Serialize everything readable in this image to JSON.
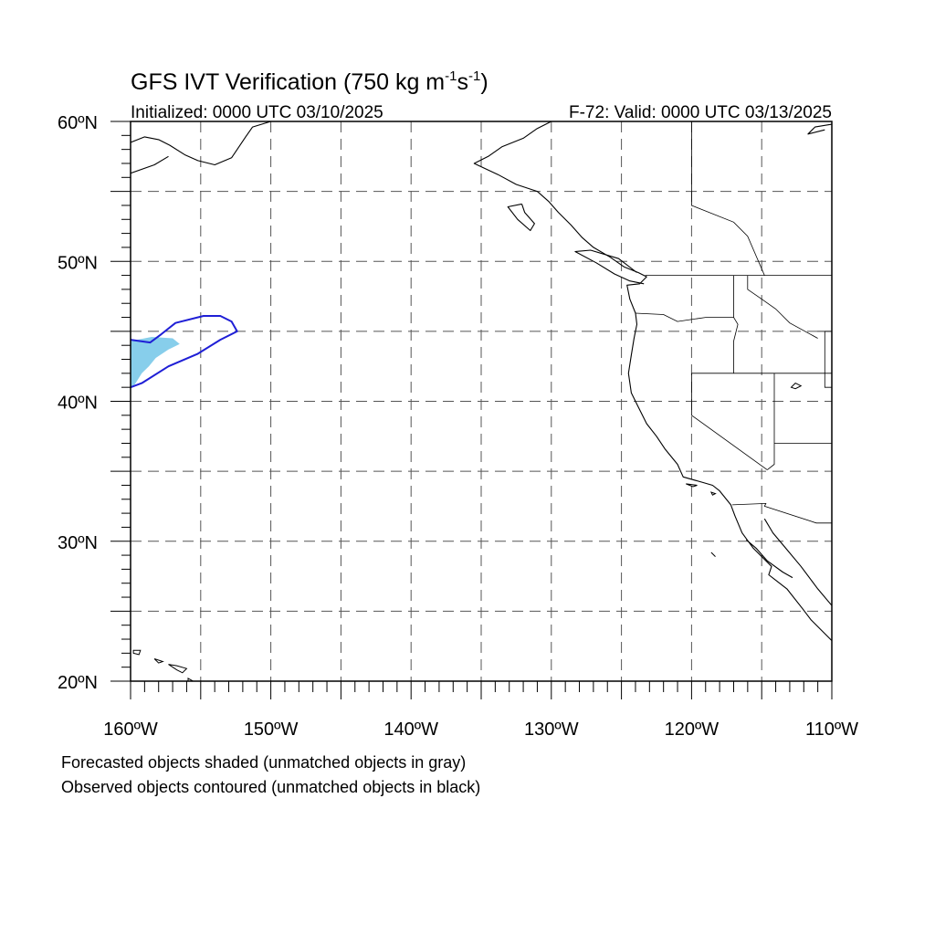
{
  "figure": {
    "title_main": "GFS IVT Verification (750 kg m",
    "title_sup1": "-1",
    "title_mid": "s",
    "title_sup2": "-1",
    "title_end": ")",
    "initialized": "Initialized: 0000 UTC 03/10/2025",
    "valid": "F-72: Valid: 0000 UTC 03/13/2025"
  },
  "map": {
    "lon_range": [
      -160,
      -110
    ],
    "lat_range": [
      20,
      60
    ],
    "grid_spacing_deg": 5,
    "grid_style": "dashed",
    "lat_labels": [
      "20ºN",
      "30ºN",
      "40ºN",
      "50ºN",
      "60ºN"
    ],
    "lon_labels": [
      "160ºW",
      "150ºW",
      "140ºW",
      "130ºW",
      "120ºW",
      "110ºW"
    ],
    "colors": {
      "forecast_fill": "#87ceeb",
      "observed_contour": "#1f1fd6",
      "coastline": "#000000",
      "grid": "#555555"
    }
  },
  "objects": {
    "forecast_shaded": {
      "color": "#87ceeb",
      "outline_lonlat": [
        [
          -160,
          44.3
        ],
        [
          -158.5,
          44.6
        ],
        [
          -157,
          44.5
        ],
        [
          -156.5,
          44.1
        ],
        [
          -157.3,
          43.7
        ],
        [
          -158.2,
          43.1
        ],
        [
          -158.7,
          42.5
        ],
        [
          -159.2,
          42.0
        ],
        [
          -159.7,
          41.2
        ],
        [
          -160,
          41.0
        ]
      ]
    },
    "observed_contour": {
      "color": "#1f1fd6",
      "outline_lonlat": [
        [
          -160,
          44.4
        ],
        [
          -158.6,
          44.2
        ],
        [
          -157.8,
          44.8
        ],
        [
          -156.8,
          45.6
        ],
        [
          -154.8,
          46.1
        ],
        [
          -153.6,
          46.1
        ],
        [
          -152.8,
          45.7
        ],
        [
          -152.4,
          45.0
        ],
        [
          -153.6,
          44.4
        ],
        [
          -155.2,
          43.4
        ],
        [
          -157.3,
          42.5
        ],
        [
          -159.2,
          41.3
        ],
        [
          -160,
          41.0
        ]
      ]
    }
  },
  "notes": [
    "Forecasted objects shaded (unmatched objects in gray)",
    "Observed objects contoured (unmatched objects in black)"
  ],
  "geography": {
    "coastline_lonlat": [
      [
        [
          -130,
          60
        ],
        [
          -131,
          59.5
        ],
        [
          -132,
          58.8
        ],
        [
          -133.5,
          58.2
        ],
        [
          -134.5,
          57.5
        ],
        [
          -135.5,
          57
        ],
        [
          -133.8,
          56.2
        ],
        [
          -132.5,
          55.5
        ],
        [
          -131,
          55
        ],
        [
          -130.2,
          54.3
        ],
        [
          -129.5,
          53.5
        ],
        [
          -128.6,
          52.6
        ],
        [
          -127.8,
          51.7
        ],
        [
          -127,
          51
        ],
        [
          -125.8,
          50.3
        ],
        [
          -124.8,
          49.6
        ],
        [
          -123.8,
          49.2
        ],
        [
          -123.2,
          48.9
        ],
        [
          -123.7,
          48.4
        ],
        [
          -124.6,
          48.3
        ],
        [
          -124.4,
          47.3
        ],
        [
          -124,
          46.3
        ],
        [
          -123.9,
          45.5
        ],
        [
          -124.1,
          44.5
        ],
        [
          -124.3,
          43.3
        ],
        [
          -124.5,
          42
        ],
        [
          -124.3,
          40.6
        ],
        [
          -123.8,
          39.6
        ],
        [
          -123.2,
          38.4
        ],
        [
          -122.5,
          37.5
        ],
        [
          -121.9,
          36.6
        ],
        [
          -121,
          35.5
        ],
        [
          -120.6,
          34.6
        ],
        [
          -119.2,
          34.2
        ],
        [
          -118.5,
          34
        ],
        [
          -118,
          33.6
        ],
        [
          -117.2,
          32.6
        ],
        [
          -116.9,
          31.8
        ],
        [
          -116.4,
          30.6
        ],
        [
          -115.6,
          29.5
        ],
        [
          -114.3,
          28.2
        ],
        [
          -114.5,
          27.6
        ],
        [
          -113.2,
          26.6
        ],
        [
          -112.1,
          25.2
        ],
        [
          -111.5,
          24.4
        ],
        [
          -110,
          22.9
        ]
      ],
      [
        [
          -114.8,
          31.6
        ],
        [
          -114.2,
          30.6
        ],
        [
          -113.2,
          29.4
        ],
        [
          -112.2,
          28.2
        ],
        [
          -111,
          26.6
        ],
        [
          -110,
          25.4
        ]
      ],
      [
        [
          -116.1,
          30.1
        ],
        [
          -115.4,
          29.5
        ],
        [
          -114.6,
          28.6
        ],
        [
          -113.5,
          27.8
        ],
        [
          -112.8,
          27.4
        ]
      ],
      [
        [
          -160,
          58.5
        ],
        [
          -159,
          58.9
        ],
        [
          -158,
          58.7
        ],
        [
          -157.2,
          58.3
        ],
        [
          -156.1,
          57.6
        ],
        [
          -155.2,
          57.2
        ],
        [
          -154,
          56.9
        ],
        [
          -152.8,
          57.4
        ],
        [
          -151.8,
          58.9
        ],
        [
          -151.3,
          59.6
        ],
        [
          -150,
          60
        ]
      ],
      [
        [
          -160,
          56.3
        ],
        [
          -158.3,
          56.9
        ],
        [
          -157.3,
          57.5
        ]
      ],
      [
        [
          -123.4,
          48.4
        ],
        [
          -124.4,
          48.6
        ],
        [
          -125.5,
          49.1
        ],
        [
          -126.8,
          49.9
        ],
        [
          -128.3,
          50.7
        ],
        [
          -127.2,
          50.8
        ],
        [
          -125.2,
          50.2
        ],
        [
          -123.9,
          49.2
        ]
      ],
      [
        [
          -132.1,
          54.1
        ],
        [
          -133.1,
          53.9
        ],
        [
          -132.4,
          53.0
        ],
        [
          -131.5,
          52.2
        ],
        [
          -131.2,
          52.7
        ],
        [
          -131.9,
          53.5
        ],
        [
          -132.1,
          54.1
        ]
      ],
      [
        [
          -110.5,
          59.4
        ],
        [
          -111.7,
          59.1
        ],
        [
          -111.2,
          59.6
        ],
        [
          -110,
          59.8
        ]
      ]
    ],
    "islands_lonlat": [
      [
        [
          -159.8,
          22.2
        ],
        [
          -159.3,
          22.2
        ],
        [
          -159.4,
          21.9
        ],
        [
          -159.8,
          22.0
        ]
      ],
      [
        [
          -158.3,
          21.6
        ],
        [
          -157.7,
          21.4
        ],
        [
          -158.0,
          21.3
        ]
      ],
      [
        [
          -157.3,
          21.2
        ],
        [
          -156.7,
          21.1
        ],
        [
          -156.0,
          20.9
        ],
        [
          -156.3,
          20.6
        ],
        [
          -156.7,
          20.8
        ]
      ],
      [
        [
          -155.9,
          20.2
        ],
        [
          -155.0,
          19.7
        ],
        [
          -155.5,
          19.1
        ],
        [
          -155.9,
          19.6
        ]
      ],
      [
        [
          -118.6,
          33.5
        ],
        [
          -118.3,
          33.4
        ],
        [
          -118.5,
          33.3
        ]
      ],
      [
        [
          -120.4,
          34.1
        ],
        [
          -119.6,
          34.0
        ],
        [
          -119.9,
          33.9
        ]
      ],
      [
        [
          -118.6,
          29.2
        ],
        [
          -118.3,
          28.9
        ]
      ],
      [
        [
          -112.6,
          41.3
        ],
        [
          -112.2,
          41.1
        ],
        [
          -112.6,
          40.9
        ],
        [
          -112.9,
          41.0
        ]
      ]
    ],
    "borders_lonlat": [
      [
        [
          -123.3,
          49
        ],
        [
          -110,
          49
        ]
      ],
      [
        [
          -120,
          42
        ],
        [
          -110,
          42
        ]
      ],
      [
        [
          -120,
          42
        ],
        [
          -120,
          39
        ],
        [
          -114.6,
          35.1
        ]
      ],
      [
        [
          -117.1,
          32.6
        ],
        [
          -114.7,
          32.7
        ],
        [
          -114.8,
          32.5
        ],
        [
          -111.1,
          31.3
        ],
        [
          -110,
          31.3
        ]
      ],
      [
        [
          -124,
          46.3
        ],
        [
          -122,
          46.2
        ],
        [
          -121,
          45.7
        ],
        [
          -119,
          46.0
        ],
        [
          -117,
          46.0
        ],
        [
          -117,
          49
        ]
      ],
      [
        [
          -117,
          46.0
        ],
        [
          -116.7,
          45.5
        ],
        [
          -117,
          44.3
        ],
        [
          -117,
          42
        ]
      ],
      [
        [
          -116,
          49
        ],
        [
          -116,
          48
        ],
        [
          -115,
          47.3
        ],
        [
          -114,
          46.6
        ],
        [
          -113,
          45.6
        ],
        [
          -111,
          44.5
        ]
      ],
      [
        [
          -114.1,
          42
        ],
        [
          -114.1,
          35.5
        ],
        [
          -114.6,
          35.1
        ]
      ],
      [
        [
          -111,
          45
        ],
        [
          -110,
          45
        ]
      ],
      [
        [
          -114.1,
          37
        ],
        [
          -110,
          37
        ]
      ],
      [
        [
          -120,
          60
        ],
        [
          -120,
          54
        ],
        [
          -117,
          52.8
        ],
        [
          -116,
          51.8
        ],
        [
          -114.8,
          49
        ]
      ],
      [
        [
          -110.5,
          45
        ],
        [
          -110.5,
          41
        ],
        [
          -110,
          41
        ]
      ]
    ]
  }
}
